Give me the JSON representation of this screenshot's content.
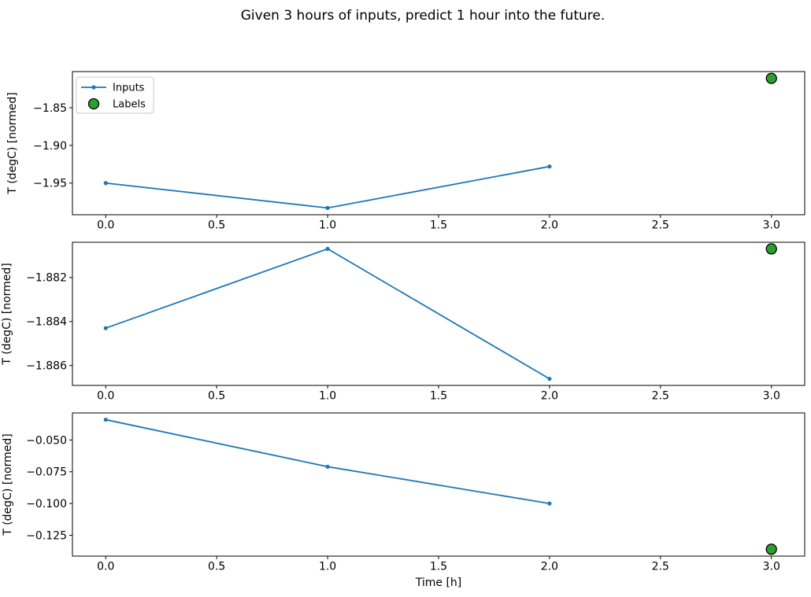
{
  "title": "Given 3 hours of inputs, predict 1 hour into the future.",
  "colors": {
    "inputs_line": "#1f77b4",
    "labels_fill": "#2ca02c",
    "labels_edge": "#000000",
    "axis": "#000000",
    "text": "#000000",
    "legend_border": "#c8c8c8",
    "background": "#ffffff"
  },
  "legend": {
    "entries": [
      {
        "label": "Inputs",
        "type": "line-marker"
      },
      {
        "label": "Labels",
        "type": "dot"
      }
    ]
  },
  "chart_data": [
    {
      "type": "line",
      "title": "",
      "ylabel": "T (degC) [normed]",
      "xlabel": "",
      "x": [
        0,
        1,
        2
      ],
      "series": [
        {
          "name": "Inputs",
          "values": [
            -1.95,
            -1.983,
            -1.928
          ]
        }
      ],
      "labels_point": {
        "name": "Labels",
        "x": 3,
        "y": -1.811
      },
      "xlim": [
        -0.15,
        3.15
      ],
      "ylim": [
        -1.992,
        -1.802
      ],
      "xticks": [
        0,
        0.5,
        1,
        1.5,
        2,
        2.5,
        3
      ],
      "xtick_labels": [
        "0.0",
        "0.5",
        "1.0",
        "1.5",
        "2.0",
        "2.5",
        "3.0"
      ],
      "yticks": [
        -1.85,
        -1.9,
        -1.95
      ],
      "ytick_labels": [
        "−1.85",
        "−1.90",
        "−1.95"
      ],
      "grid": false,
      "legend": true,
      "legend_position": "upper-left"
    },
    {
      "type": "line",
      "title": "",
      "ylabel": "T (degC) [normed]",
      "xlabel": "",
      "x": [
        0,
        1,
        2
      ],
      "series": [
        {
          "name": "Inputs",
          "values": [
            -1.8843,
            -1.8807,
            -1.8866
          ]
        }
      ],
      "labels_point": {
        "name": "Labels",
        "x": 3,
        "y": -1.8807
      },
      "xlim": [
        -0.15,
        3.15
      ],
      "ylim": [
        -1.8869,
        -1.8804
      ],
      "xticks": [
        0,
        0.5,
        1,
        1.5,
        2,
        2.5,
        3
      ],
      "xtick_labels": [
        "0.0",
        "0.5",
        "1.0",
        "1.5",
        "2.0",
        "2.5",
        "3.0"
      ],
      "yticks": [
        -1.882,
        -1.884,
        -1.886
      ],
      "ytick_labels": [
        "−1.882",
        "−1.884",
        "−1.886"
      ],
      "grid": false,
      "legend": false,
      "legend_position": ""
    },
    {
      "type": "line",
      "title": "",
      "ylabel": "T (degC) [normed]",
      "xlabel": "Time [h]",
      "x": [
        0,
        1,
        2
      ],
      "series": [
        {
          "name": "Inputs",
          "values": [
            -0.034,
            -0.071,
            -0.1
          ]
        }
      ],
      "labels_point": {
        "name": "Labels",
        "x": 3,
        "y": -0.136
      },
      "xlim": [
        -0.15,
        3.15
      ],
      "ylim": [
        -0.1414,
        -0.0287
      ],
      "xticks": [
        0,
        0.5,
        1,
        1.5,
        2,
        2.5,
        3
      ],
      "xtick_labels": [
        "0.0",
        "0.5",
        "1.0",
        "1.5",
        "2.0",
        "2.5",
        "3.0"
      ],
      "yticks": [
        -0.05,
        -0.075,
        -0.1,
        -0.125
      ],
      "ytick_labels": [
        "−0.050",
        "−0.075",
        "−0.100",
        "−0.125"
      ],
      "grid": false,
      "legend": false,
      "legend_position": ""
    }
  ]
}
